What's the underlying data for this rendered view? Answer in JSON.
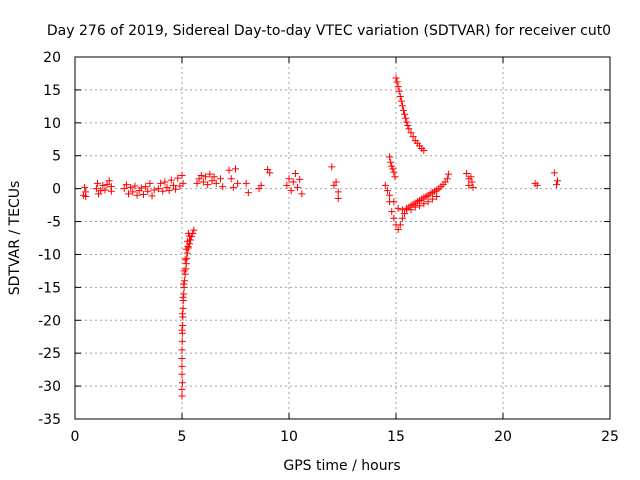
{
  "chart_data": {
    "type": "scatter",
    "title": "Day 276 of 2019, Sidereal Day-to-day VTEC variation (SDTVAR) for receiver cut0",
    "xlabel": "GPS time / hours",
    "ylabel": "SDTVAR / TECUs",
    "xlim": [
      0,
      25
    ],
    "ylim": [
      -35,
      20
    ],
    "xticks": [
      0,
      5,
      10,
      15,
      20,
      25
    ],
    "yticks": [
      -35,
      -30,
      -25,
      -20,
      -15,
      -10,
      -5,
      0,
      5,
      10,
      15,
      20
    ],
    "grid": true,
    "marker": "plus",
    "color": "#ff0000",
    "series": [
      {
        "name": "SDTVAR",
        "points": [
          [
            0.4,
            -1.0
          ],
          [
            0.45,
            0.2
          ],
          [
            0.5,
            -0.5
          ],
          [
            0.5,
            -1.2
          ],
          [
            1.0,
            0.0
          ],
          [
            1.05,
            0.8
          ],
          [
            1.1,
            -0.8
          ],
          [
            1.2,
            -0.3
          ],
          [
            1.3,
            0.5
          ],
          [
            1.4,
            -0.2
          ],
          [
            1.5,
            0.6
          ],
          [
            1.6,
            1.2
          ],
          [
            1.7,
            0.3
          ],
          [
            1.7,
            -0.4
          ],
          [
            2.3,
            0.0
          ],
          [
            2.4,
            0.6
          ],
          [
            2.5,
            -0.8
          ],
          [
            2.6,
            0.2
          ],
          [
            2.7,
            -0.5
          ],
          [
            2.8,
            0.4
          ],
          [
            2.9,
            -1.0
          ],
          [
            3.0,
            -0.3
          ],
          [
            3.1,
            0.1
          ],
          [
            3.2,
            -0.9
          ],
          [
            3.3,
            0.3
          ],
          [
            3.4,
            -0.4
          ],
          [
            3.5,
            0.8
          ],
          [
            3.6,
            -1.1
          ],
          [
            3.7,
            -0.2
          ],
          [
            3.9,
            0.0
          ],
          [
            4.0,
            0.8
          ],
          [
            4.1,
            -0.4
          ],
          [
            4.2,
            1.0
          ],
          [
            4.3,
            0.2
          ],
          [
            4.4,
            -0.3
          ],
          [
            4.5,
            1.3
          ],
          [
            4.6,
            0.5
          ],
          [
            4.7,
            -0.1
          ],
          [
            4.8,
            1.6
          ],
          [
            4.9,
            0.4
          ],
          [
            5.0,
            2.0
          ],
          [
            5.05,
            0.8
          ],
          [
            5.7,
            0.8
          ],
          [
            5.8,
            1.5
          ],
          [
            5.9,
            2.0
          ],
          [
            6.0,
            1.0
          ],
          [
            6.1,
            1.8
          ],
          [
            6.2,
            0.6
          ],
          [
            6.3,
            2.2
          ],
          [
            6.4,
            1.2
          ],
          [
            6.5,
            1.8
          ],
          [
            6.6,
            0.8
          ],
          [
            6.8,
            1.5
          ],
          [
            6.9,
            0.3
          ],
          [
            7.2,
            2.8
          ],
          [
            7.3,
            1.5
          ],
          [
            7.4,
            0.2
          ],
          [
            7.5,
            3.0
          ],
          [
            7.6,
            0.8
          ],
          [
            8.0,
            0.8
          ],
          [
            8.1,
            -0.6
          ],
          [
            8.6,
            0.0
          ],
          [
            8.7,
            0.5
          ],
          [
            9.0,
            2.9
          ],
          [
            9.1,
            2.4
          ],
          [
            9.9,
            0.5
          ],
          [
            10.0,
            1.5
          ],
          [
            10.1,
            -0.3
          ],
          [
            10.2,
            1.0
          ],
          [
            10.3,
            2.3
          ],
          [
            10.4,
            0.2
          ],
          [
            10.5,
            1.4
          ],
          [
            10.6,
            -0.8
          ],
          [
            12.0,
            3.3
          ],
          [
            12.1,
            0.5
          ],
          [
            12.2,
            1.0
          ],
          [
            12.3,
            -0.5
          ],
          [
            12.3,
            -1.5
          ],
          [
            14.5,
            0.5
          ],
          [
            14.6,
            -0.3
          ],
          [
            14.7,
            4.8
          ],
          [
            14.75,
            4.0
          ],
          [
            14.8,
            3.4
          ],
          [
            14.85,
            3.0
          ],
          [
            14.9,
            2.5
          ],
          [
            14.95,
            1.8
          ],
          [
            14.7,
            -2.0
          ],
          [
            14.8,
            -3.5
          ],
          [
            14.9,
            -4.5
          ],
          [
            15.0,
            -5.5
          ],
          [
            15.1,
            -6.2
          ],
          [
            15.2,
            -5.5
          ],
          [
            15.3,
            -4.5
          ],
          [
            15.4,
            -3.8
          ],
          [
            15.5,
            -3.2
          ],
          [
            15.6,
            -2.8
          ],
          [
            15.7,
            -2.6
          ],
          [
            15.8,
            -2.4
          ],
          [
            15.9,
            -2.2
          ],
          [
            16.0,
            -2.0
          ],
          [
            16.1,
            -1.8
          ],
          [
            16.2,
            -1.6
          ],
          [
            16.3,
            -1.4
          ],
          [
            16.4,
            -1.2
          ],
          [
            16.5,
            -1.0
          ],
          [
            16.6,
            -0.8
          ],
          [
            16.7,
            -0.6
          ],
          [
            16.8,
            -0.4
          ],
          [
            16.9,
            -0.2
          ],
          [
            17.0,
            0.0
          ],
          [
            17.1,
            0.3
          ],
          [
            17.2,
            0.6
          ],
          [
            17.3,
            1.0
          ],
          [
            17.4,
            1.5
          ],
          [
            17.45,
            2.2
          ],
          [
            14.7,
            -1.0
          ],
          [
            14.9,
            -2.0
          ],
          [
            15.1,
            -3.0
          ],
          [
            15.3,
            -3.2
          ],
          [
            15.5,
            -3.0
          ],
          [
            15.7,
            -3.2
          ],
          [
            15.9,
            -2.8
          ],
          [
            16.1,
            -2.6
          ],
          [
            16.3,
            -2.3
          ],
          [
            16.5,
            -2.0
          ],
          [
            16.7,
            -1.6
          ],
          [
            16.9,
            -1.2
          ],
          [
            15.0,
            16.8
          ],
          [
            15.05,
            16.2
          ],
          [
            15.1,
            15.5
          ],
          [
            15.15,
            14.8
          ],
          [
            15.2,
            14.0
          ],
          [
            15.25,
            13.3
          ],
          [
            15.3,
            12.6
          ],
          [
            15.35,
            11.9
          ],
          [
            15.4,
            11.3
          ],
          [
            15.45,
            10.7
          ],
          [
            15.5,
            10.1
          ],
          [
            15.55,
            9.6
          ],
          [
            15.6,
            9.1
          ],
          [
            15.7,
            8.5
          ],
          [
            15.8,
            7.9
          ],
          [
            15.9,
            7.3
          ],
          [
            16.0,
            6.9
          ],
          [
            16.1,
            6.5
          ],
          [
            16.2,
            6.1
          ],
          [
            16.3,
            5.8
          ],
          [
            18.3,
            2.3
          ],
          [
            18.4,
            1.5
          ],
          [
            18.4,
            0.5
          ],
          [
            18.5,
            1.8
          ],
          [
            18.55,
            1.0
          ],
          [
            18.6,
            0.2
          ],
          [
            21.5,
            0.8
          ],
          [
            21.6,
            0.5
          ],
          [
            22.4,
            2.4
          ],
          [
            22.5,
            0.6
          ],
          [
            22.55,
            1.2
          ],
          [
            5.55,
            -6.3
          ],
          [
            5.5,
            -6.8
          ],
          [
            5.45,
            -7.3
          ],
          [
            5.4,
            -7.8
          ],
          [
            5.35,
            -8.4
          ],
          [
            5.3,
            -9.0
          ],
          [
            5.25,
            -9.8
          ],
          [
            5.22,
            -10.6
          ],
          [
            5.2,
            -11.4
          ],
          [
            5.18,
            -12.2
          ],
          [
            5.15,
            -13.0
          ],
          [
            5.12,
            -14.0
          ],
          [
            5.1,
            -15.0
          ],
          [
            5.08,
            -16.0
          ],
          [
            5.06,
            -17.0
          ],
          [
            5.05,
            -18.2
          ],
          [
            5.04,
            -19.5
          ],
          [
            5.03,
            -20.8
          ],
          [
            5.02,
            -22.0
          ],
          [
            5.01,
            -23.2
          ],
          [
            5.0,
            -24.5
          ],
          [
            5.0,
            -25.8
          ],
          [
            5.0,
            -27.0
          ],
          [
            5.0,
            -28.2
          ],
          [
            5.02,
            -29.5
          ],
          [
            5.0,
            -30.5
          ],
          [
            5.0,
            -31.5
          ],
          [
            5.3,
            -6.8
          ],
          [
            5.25,
            -8.0
          ],
          [
            5.2,
            -9.2
          ],
          [
            5.15,
            -10.8
          ],
          [
            5.1,
            -12.5
          ],
          [
            5.08,
            -14.5
          ],
          [
            5.05,
            -16.5
          ],
          [
            5.02,
            -19.0
          ],
          [
            5.0,
            -21.5
          ],
          [
            5.35,
            -7.2
          ],
          [
            5.28,
            -8.8
          ]
        ]
      }
    ]
  }
}
